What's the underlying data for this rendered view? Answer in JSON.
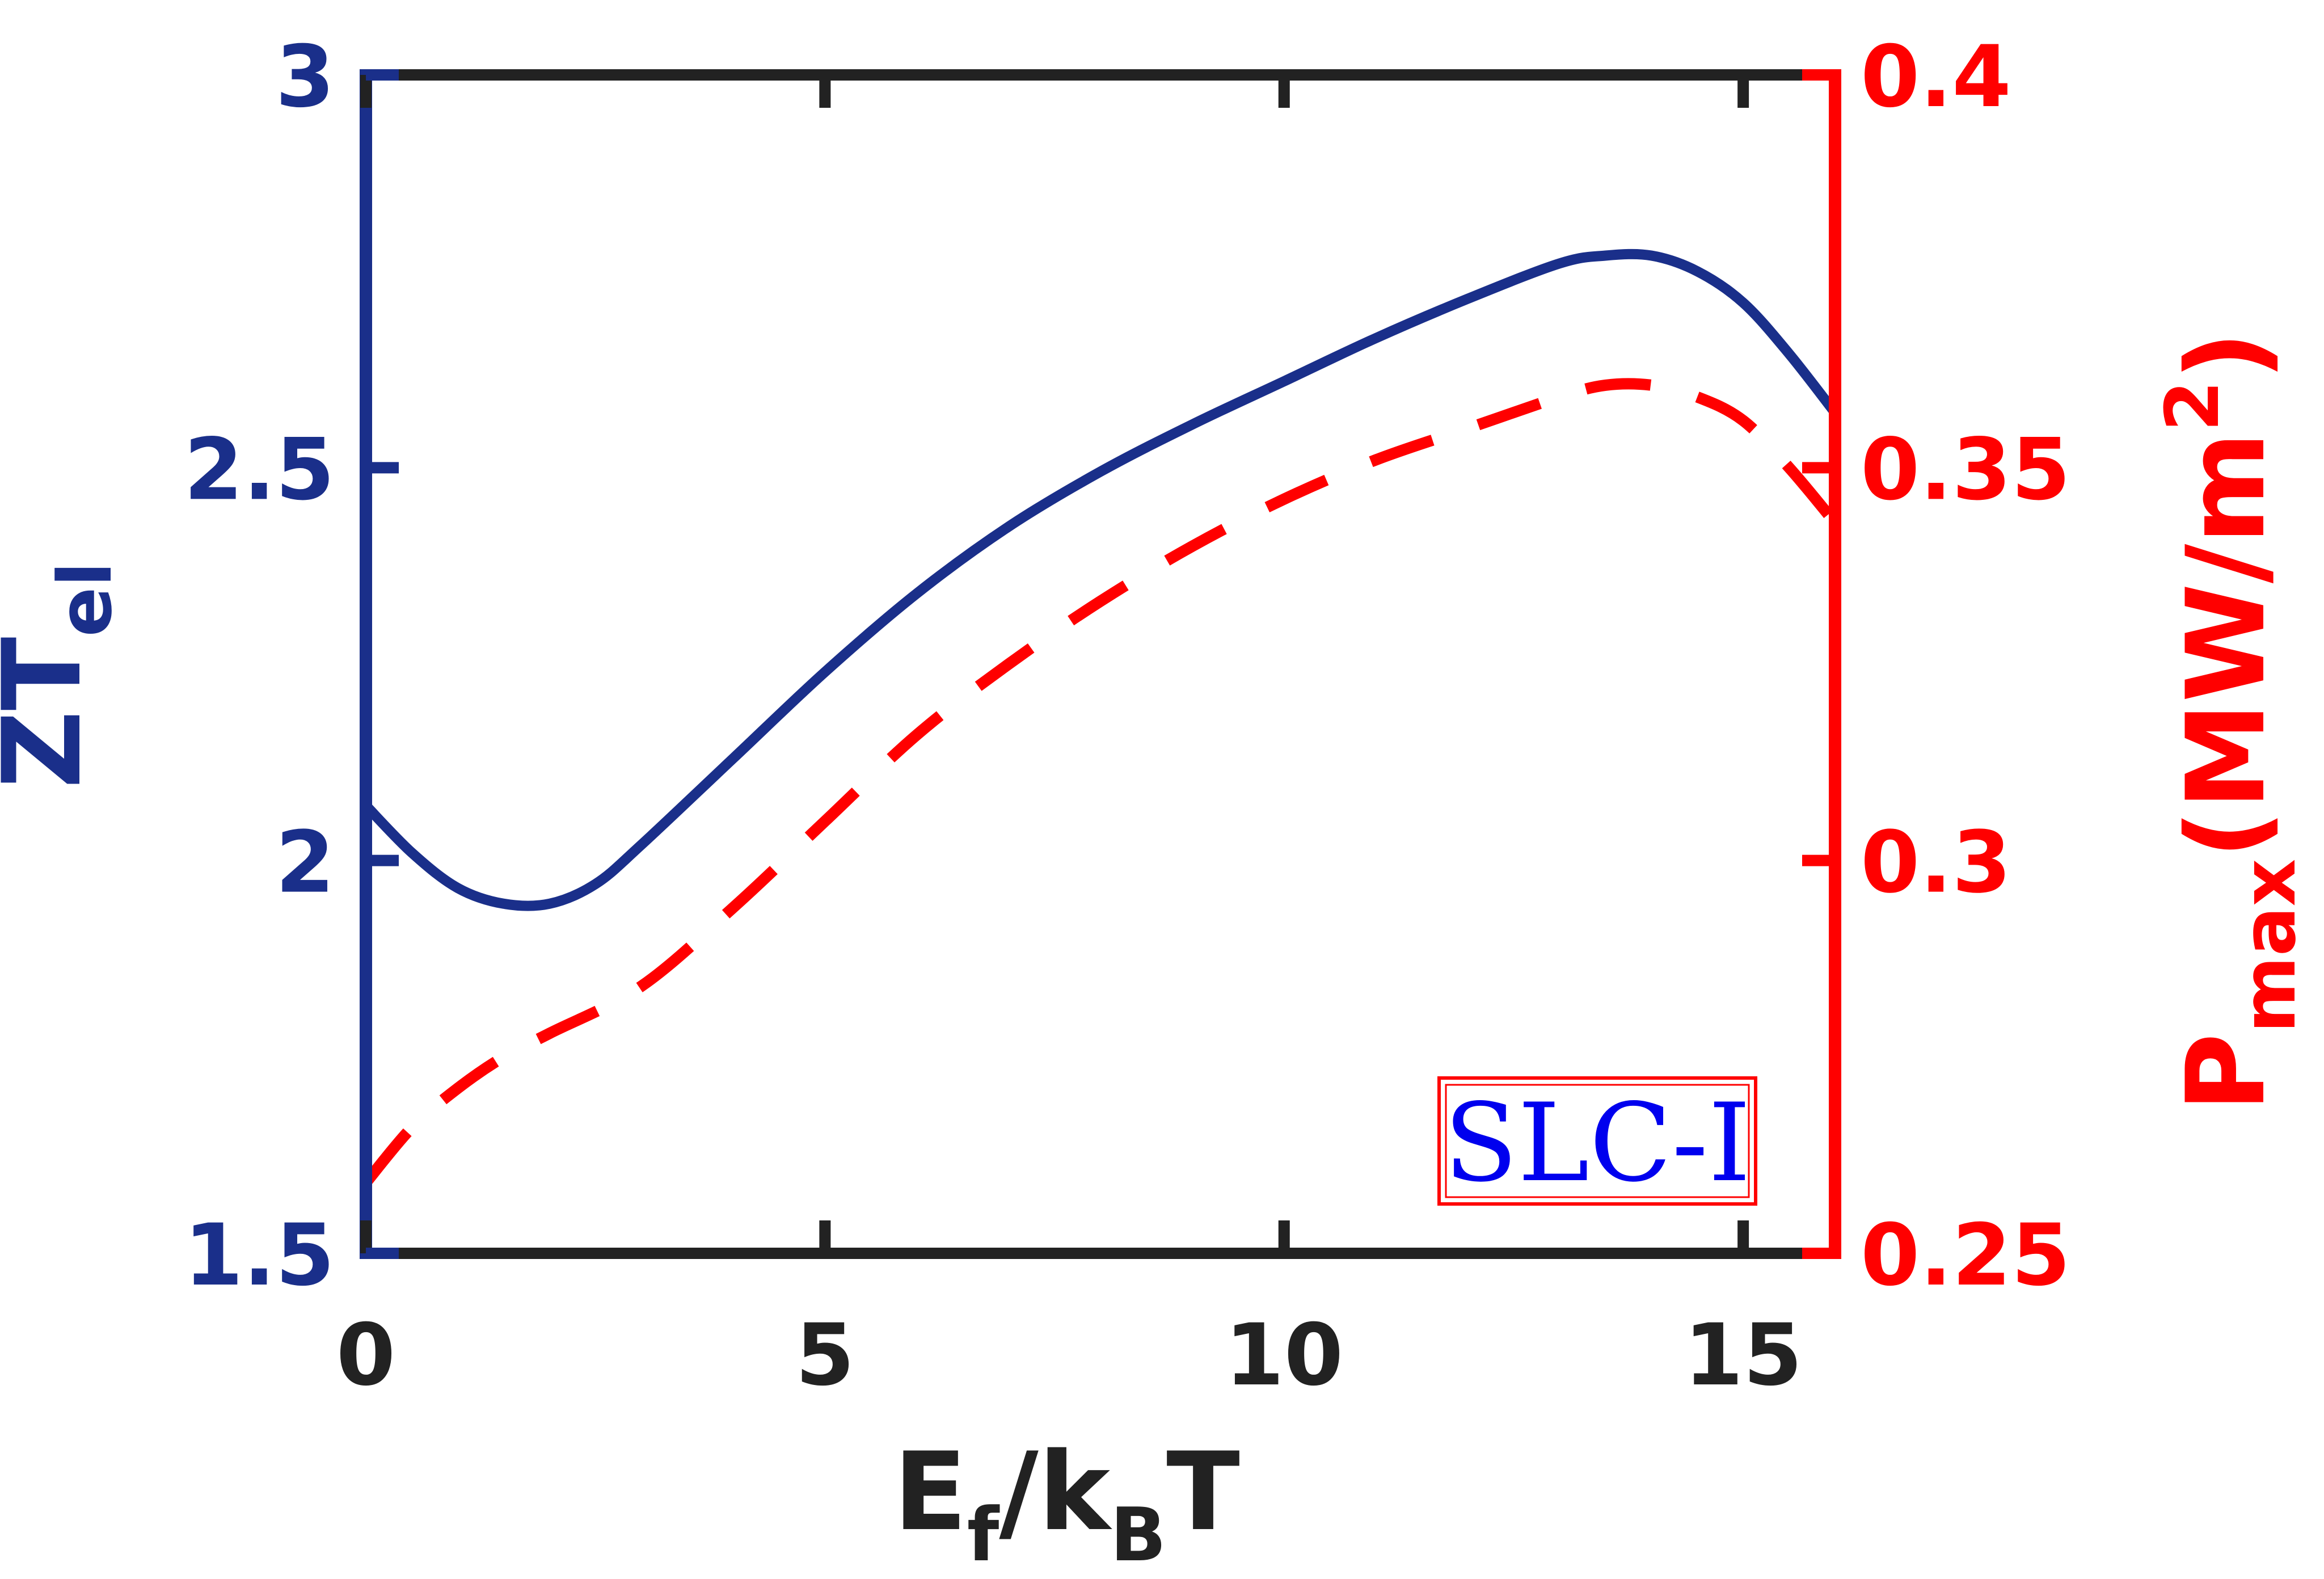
{
  "chart_data": {
    "type": "line",
    "title": "",
    "xlabel": {
      "main": "E",
      "sub1": "f",
      "mid": "/k",
      "sub2": "B",
      "end": "T"
    },
    "ylabel_left": {
      "main": "ZT",
      "sub": "el"
    },
    "ylabel_right": {
      "main": "P",
      "sub": "max",
      "paren_open": "(MW/m",
      "sup": "2",
      "paren_close": ")"
    },
    "xlim": [
      0,
      16
    ],
    "ylim_left": [
      1.5,
      3
    ],
    "ylim_right": [
      0.25,
      0.4
    ],
    "x_ticks": [
      "0",
      "5",
      "10",
      "15"
    ],
    "y_left_ticks": [
      "1.5",
      "2",
      "2.5",
      "3"
    ],
    "y_right_ticks": [
      "0.25",
      "0.3",
      "0.35",
      "0.4"
    ],
    "grid": false,
    "annotation": "SLC-I",
    "colors": {
      "left_axis": "#1a2f8a",
      "right_axis": "#ff0000",
      "frame": "#222222",
      "annotation_text": "#0000ee"
    },
    "series": [
      {
        "axis": "left",
        "style": "solid",
        "x": [
          0,
          0.5,
          1,
          1.5,
          2,
          2.5,
          3,
          4,
          5,
          6,
          7,
          8,
          9,
          10,
          11,
          12,
          13,
          13.5,
          14,
          14.5,
          15,
          15.5,
          16
        ],
        "y": [
          2.07,
          2.01,
          1.965,
          1.945,
          1.945,
          1.97,
          2.02,
          2.13,
          2.24,
          2.34,
          2.425,
          2.495,
          2.555,
          2.61,
          2.665,
          2.715,
          2.76,
          2.77,
          2.77,
          2.75,
          2.71,
          2.645,
          2.57
        ]
      },
      {
        "axis": "right",
        "style": "dashed",
        "x": [
          0,
          0.5,
          1,
          1.5,
          2,
          3,
          4,
          5,
          6,
          7,
          8,
          9,
          10,
          11,
          12,
          13,
          13.5,
          14,
          14.5,
          15,
          15.5,
          16
        ],
        "y": [
          0.259,
          0.266,
          0.271,
          0.275,
          0.278,
          0.284,
          0.294,
          0.305,
          0.316,
          0.325,
          0.333,
          0.34,
          0.346,
          0.351,
          0.355,
          0.359,
          0.3605,
          0.3605,
          0.359,
          0.356,
          0.35,
          0.343
        ]
      }
    ]
  }
}
